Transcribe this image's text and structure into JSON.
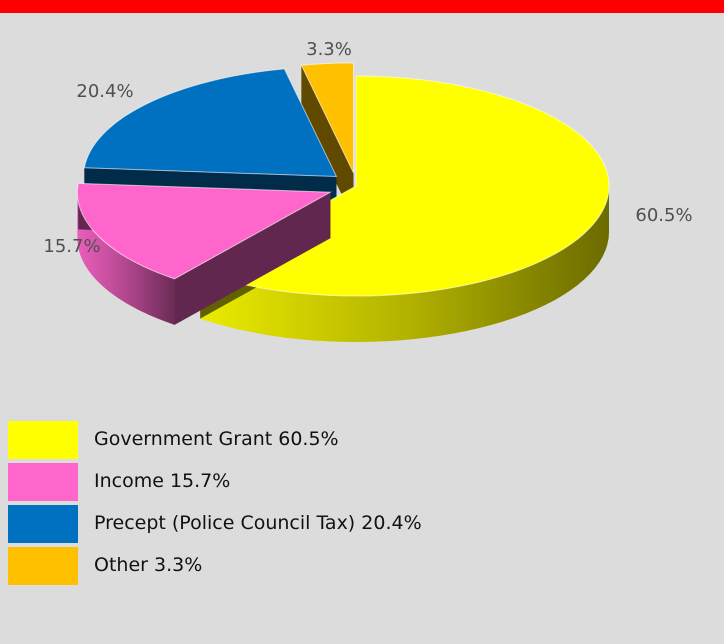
{
  "chart_data": {
    "type": "pie",
    "categories": [
      "Government Grant",
      "Income",
      "Precept (Police Council Tax)",
      "Other"
    ],
    "values": [
      60.5,
      15.7,
      20.4,
      3.3
    ],
    "data_labels": [
      "60.5%",
      "15.7%",
      "20.4%",
      "3.3%"
    ],
    "colors": [
      "#ffff00",
      "#ff66cc",
      "#0070c0",
      "#ffc000"
    ],
    "title": "",
    "legend_position": "bottom-left",
    "exploded": true,
    "style": "3d"
  },
  "legend": {
    "items": [
      {
        "label": "Government Grant 60.5%",
        "color": "#ffff00"
      },
      {
        "label": "Income 15.7%",
        "color": "#ff66cc"
      },
      {
        "label": "Precept (Police Council Tax) 20.4%",
        "color": "#0070c0"
      },
      {
        "label": "Other 3.3%",
        "color": "#ffc000"
      }
    ]
  },
  "header_bar": {
    "color": "#ff0000"
  },
  "background": "#dcdcdc"
}
